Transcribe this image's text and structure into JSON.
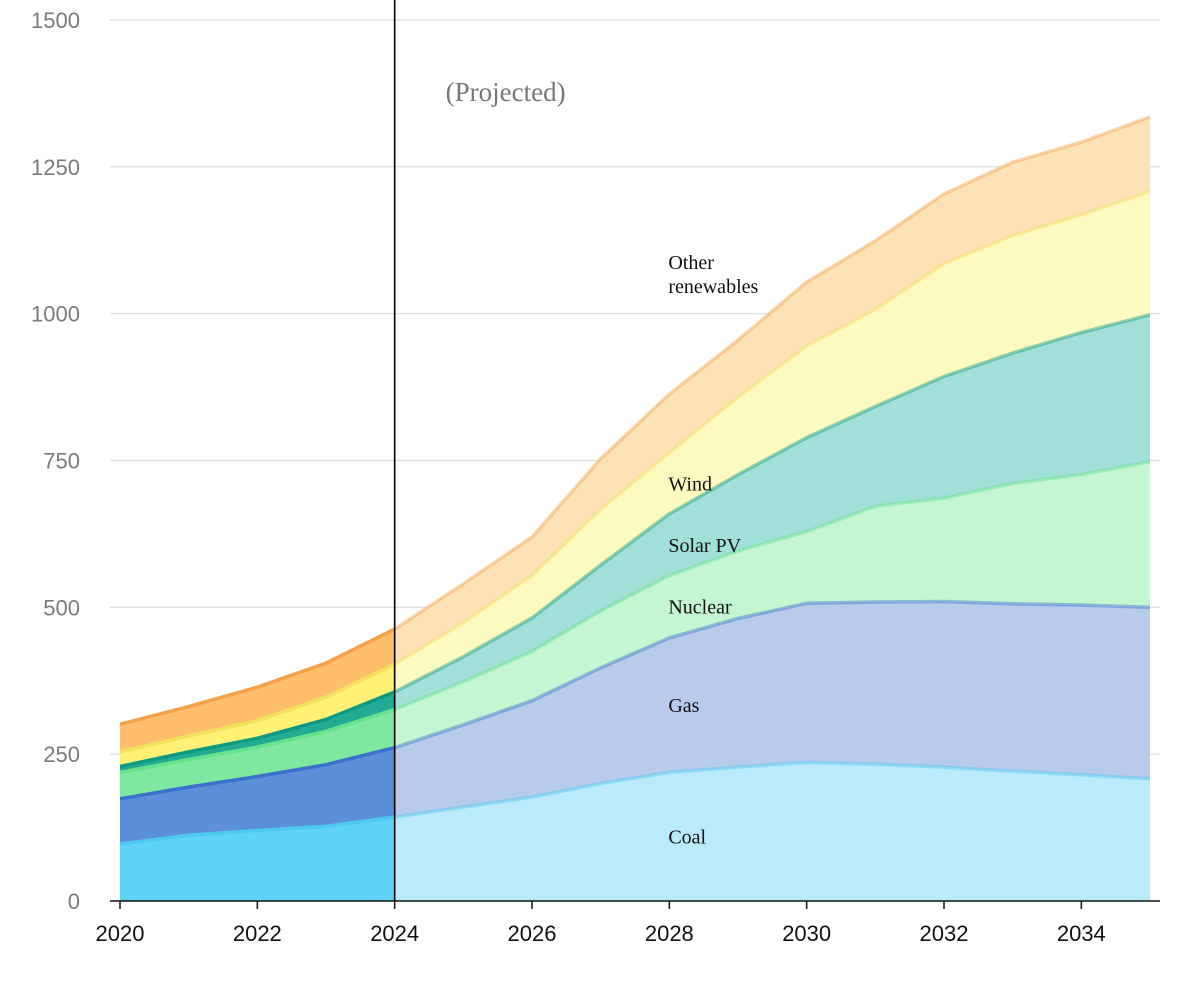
{
  "chart_data": {
    "type": "area",
    "stacked": true,
    "x": [
      2020,
      2021,
      2022,
      2023,
      2024,
      2025,
      2026,
      2027,
      2028,
      2029,
      2030,
      2031,
      2032,
      2033,
      2034,
      2035
    ],
    "xlim": [
      2020,
      2035
    ],
    "ylim": [
      0,
      1500
    ],
    "x_ticks": [
      "2020",
      "2022",
      "2024",
      "2026",
      "2028",
      "2030",
      "2032",
      "2034"
    ],
    "y_ticks": [
      "0",
      "250",
      "500",
      "750",
      "1000",
      "1250",
      "1500"
    ],
    "grid": "horizontal",
    "divider_year": 2024,
    "annotation": "(Projected)",
    "series": [
      {
        "name": "Coal",
        "values": [
          97,
          112,
          120,
          127,
          143,
          160,
          177,
          200,
          219,
          228,
          236,
          233,
          228,
          221,
          215,
          208
        ],
        "color": "#5fd3f5",
        "projected_color": "#b9ebfa",
        "line": "#4ec9f0"
      },
      {
        "name": "Gas",
        "values": [
          77,
          82,
          92,
          105,
          118,
          140,
          164,
          197,
          229,
          253,
          271,
          276,
          282,
          285,
          289,
          292
        ],
        "color": "#5b8fd9",
        "projected_color": "#b8cbeb",
        "line": "#3b70cc"
      },
      {
        "name": "Nuclear",
        "values": [
          45,
          47,
          50,
          57,
          65,
          73,
          84,
          97,
          106,
          115,
          122,
          163,
          176,
          205,
          222,
          248
        ],
        "color": "#7ee8a0",
        "projected_color": "#c4f6d2",
        "line": "#66e28b"
      },
      {
        "name": "Solar PV",
        "values": [
          10,
          13,
          15,
          20,
          30,
          43,
          57,
          78,
          105,
          130,
          160,
          170,
          207,
          222,
          242,
          250
        ],
        "color": "#22aa94",
        "projected_color": "#a0e0d8",
        "line": "#0e9a82"
      },
      {
        "name": "Wind",
        "values": [
          25,
          27,
          30,
          38,
          47,
          58,
          72,
          95,
          104,
          132,
          156,
          165,
          192,
          200,
          200,
          210
        ],
        "color": "#fff176",
        "projected_color": "#fdfac0",
        "line": "#f2e15c"
      },
      {
        "name": "Other renewables",
        "values": [
          47,
          50,
          57,
          58,
          60,
          66,
          66,
          86,
          100,
          97,
          109,
          117,
          119,
          125,
          124,
          127
        ],
        "color": "#ffbe6b",
        "projected_color": "#fde2b6",
        "line": "#f5a14a"
      }
    ],
    "series_labels": [
      {
        "series": "Coal",
        "lines": [
          "Coal"
        ]
      },
      {
        "series": "Gas",
        "lines": [
          "Gas"
        ]
      },
      {
        "series": "Nuclear",
        "lines": [
          "Nuclear"
        ]
      },
      {
        "series": "Solar PV",
        "lines": [
          "Solar PV"
        ]
      },
      {
        "series": "Wind",
        "lines": [
          "Wind"
        ]
      },
      {
        "series": "Other renewables",
        "lines": [
          "Other",
          "renewables"
        ]
      }
    ]
  }
}
